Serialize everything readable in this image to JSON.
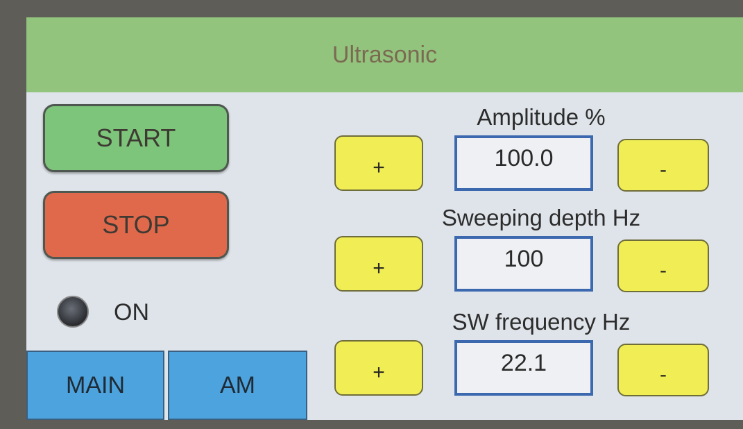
{
  "header": {
    "title": "Ultrasonic"
  },
  "controls": {
    "start": "START",
    "stop": "STOP",
    "indicator": "ON"
  },
  "tabs": [
    "MAIN",
    "AM"
  ],
  "parameters": [
    {
      "label": "Amplitude %",
      "value": "100.0",
      "plus": "+",
      "minus": "-"
    },
    {
      "label": "Sweeping depth Hz",
      "value": "100",
      "plus": "+",
      "minus": "-"
    },
    {
      "label": "SW frequency Hz",
      "value": "22.1",
      "plus": "+",
      "minus": "-"
    }
  ]
}
